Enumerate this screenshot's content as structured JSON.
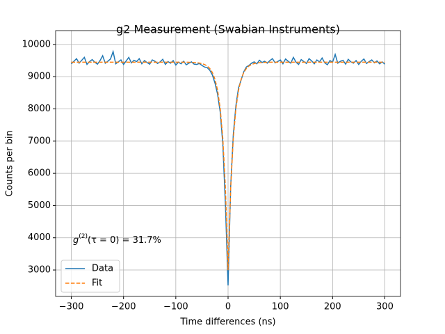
{
  "chart_data": {
    "type": "line",
    "title": "g2 Measurement (Swabian Instruments)",
    "x_label": "Time differences (ns)",
    "y_label": "Counts per bin",
    "annotation": {
      "base": "g",
      "sup": "(2)",
      "rest": "(τ = 0) = 31.7%"
    },
    "x": [
      -300,
      -295,
      -290,
      -285,
      -280,
      -275,
      -270,
      -265,
      -260,
      -255,
      -250,
      -245,
      -240,
      -235,
      -230,
      -225,
      -220,
      -215,
      -210,
      -205,
      -200,
      -195,
      -190,
      -185,
      -180,
      -175,
      -170,
      -165,
      -160,
      -155,
      -150,
      -145,
      -140,
      -135,
      -130,
      -125,
      -120,
      -115,
      -110,
      -105,
      -100,
      -95,
      -90,
      -85,
      -80,
      -75,
      -70,
      -65,
      -60,
      -55,
      -50,
      -45,
      -40,
      -35,
      -30,
      -25,
      -20,
      -15,
      -10,
      -5,
      0,
      5,
      10,
      15,
      20,
      25,
      30,
      35,
      40,
      45,
      50,
      55,
      60,
      65,
      70,
      75,
      80,
      85,
      90,
      95,
      100,
      105,
      110,
      115,
      120,
      125,
      130,
      135,
      140,
      145,
      150,
      155,
      160,
      165,
      170,
      175,
      180,
      185,
      190,
      195,
      200,
      205,
      210,
      215,
      220,
      225,
      230,
      235,
      240,
      245,
      250,
      255,
      260,
      265,
      270,
      275,
      280,
      285,
      290,
      295,
      300
    ],
    "series": [
      {
        "name": "Data",
        "color": "#1f77b4",
        "dash": false,
        "values": [
          9400,
          9480,
          9560,
          9420,
          9510,
          9600,
          9380,
          9470,
          9530,
          9450,
          9390,
          9500,
          9650,
          9420,
          9480,
          9550,
          9780,
          9400,
          9460,
          9520,
          9380,
          9490,
          9600,
          9430,
          9510,
          9470,
          9560,
          9400,
          9500,
          9440,
          9390,
          9520,
          9480,
          9410,
          9460,
          9540,
          9380,
          9470,
          9420,
          9500,
          9360,
          9450,
          9400,
          9480,
          9370,
          9420,
          9460,
          9390,
          9380,
          9410,
          9350,
          9300,
          9280,
          9200,
          9050,
          8800,
          8450,
          7900,
          6900,
          5000,
          2520,
          5600,
          7200,
          8100,
          8650,
          8900,
          9150,
          9300,
          9350,
          9420,
          9460,
          9400,
          9510,
          9440,
          9480,
          9420,
          9500,
          9560,
          9430,
          9470,
          9520,
          9400,
          9550,
          9480,
          9420,
          9600,
          9450,
          9380,
          9530,
          9470,
          9410,
          9560,
          9490,
          9400,
          9520,
          9460,
          9580,
          9430,
          9370,
          9500,
          9450,
          9690,
          9420,
          9480,
          9510,
          9390,
          9540,
          9460,
          9420,
          9500,
          9380,
          9480,
          9550,
          9410,
          9470,
          9520,
          9430,
          9490,
          9400,
          9460,
          9390
        ]
      },
      {
        "name": "Fit",
        "color": "#ff7f0e",
        "dash": true,
        "values": [
          9450,
          9450,
          9450,
          9450,
          9450,
          9450,
          9450,
          9450,
          9450,
          9450,
          9450,
          9450,
          9450,
          9450,
          9450,
          9450,
          9450,
          9450,
          9450,
          9450,
          9450,
          9450,
          9450,
          9450,
          9450,
          9450,
          9450,
          9450,
          9450,
          9450,
          9450,
          9450,
          9450,
          9450,
          9450,
          9450,
          9450,
          9450,
          9450,
          9450,
          9450,
          9450,
          9450,
          9450,
          9450,
          9448,
          9444,
          9440,
          9434,
          9424,
          9407,
          9378,
          9332,
          9255,
          9129,
          8920,
          8577,
          8010,
          7075,
          5536,
          2996,
          5536,
          7075,
          8010,
          8577,
          8920,
          9129,
          9255,
          9332,
          9378,
          9407,
          9424,
          9434,
          9440,
          9444,
          9448,
          9450,
          9450,
          9450,
          9450,
          9450,
          9450,
          9450,
          9450,
          9450,
          9450,
          9450,
          9450,
          9450,
          9450,
          9450,
          9450,
          9450,
          9450,
          9450,
          9450,
          9450,
          9450,
          9450,
          9450,
          9450,
          9450,
          9450,
          9450,
          9450,
          9450,
          9450,
          9450,
          9450,
          9450,
          9450,
          9450,
          9450,
          9450,
          9450,
          9450,
          9450,
          9450,
          9450,
          9450,
          9450
        ]
      }
    ],
    "xlim": [
      -330,
      330
    ],
    "ylim": [
      2180,
      10430
    ],
    "xticks": [
      {
        "value": -300,
        "label": "−300"
      },
      {
        "value": -200,
        "label": "−200"
      },
      {
        "value": -100,
        "label": "−100"
      },
      0,
      100,
      200,
      300
    ],
    "yticks": [
      3000,
      4000,
      5000,
      6000,
      7000,
      8000,
      9000,
      10000
    ],
    "grid": true,
    "legend": "lower left"
  }
}
